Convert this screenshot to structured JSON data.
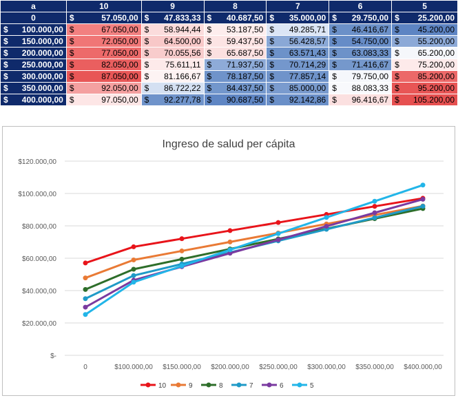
{
  "table": {
    "corner": "a",
    "header_row": {
      "label": "0",
      "currency": "$",
      "values": [
        "57.050,00",
        "47.833,33",
        "40.687,50",
        "35.000,00",
        "29.750,00",
        "25.200,00"
      ]
    },
    "columns": [
      "10",
      "9",
      "8",
      "7",
      "6",
      "5"
    ],
    "rows": [
      {
        "label_currency": "$",
        "label": "100.000,00",
        "values": [
          "67.050,00",
          "58.944,44",
          "53.187,50",
          "49.285,71",
          "46.416,67",
          "45.200,00"
        ],
        "colors": [
          "#f28080",
          "#fbdcdc",
          "#fdeded",
          "#dbe5f5",
          "#6b90c8",
          "#5d84c3"
        ]
      },
      {
        "label_currency": "$",
        "label": "150.000,00",
        "values": [
          "72.050,00",
          "64.500,00",
          "59.437,50",
          "56.428,57",
          "54.750,00",
          "55.200,00"
        ],
        "colors": [
          "#f07676",
          "#f8c8c8",
          "#fce4e4",
          "#8aa8d6",
          "#668cc7",
          "#8ca9d7"
        ]
      },
      {
        "label_currency": "$",
        "label": "200.000,00",
        "values": [
          "77.050,00",
          "70.055,56",
          "65.687,50",
          "63.571,43",
          "63.083,33",
          "65.200,00"
        ],
        "colors": [
          "#ed6a6a",
          "#f8cccc",
          "#fbe0e0",
          "#6d92c9",
          "#6d92c9",
          "#f5f7fb"
        ]
      },
      {
        "label_currency": "$",
        "label": "250.000,00",
        "values": [
          "82.050,00",
          "75.611,11",
          "71.937,50",
          "70.714,29",
          "71.416,67",
          "75.200,00"
        ],
        "colors": [
          "#ea5f5f",
          "#fdeaea",
          "#8eabd8",
          "#7497cc",
          "#7598cc",
          "#fdeaea"
        ]
      },
      {
        "label_currency": "$",
        "label": "300.000,00",
        "values": [
          "87.050,00",
          "81.166,67",
          "78.187,50",
          "77.857,14",
          "79.750,00",
          "85.200,00"
        ],
        "colors": [
          "#e85656",
          "#fdf3f3",
          "#6f93ca",
          "#6f93ca",
          "#f5f7fb",
          "#ec6868"
        ]
      },
      {
        "label_currency": "$",
        "label": "350.000,00",
        "values": [
          "92.050,00",
          "86.722,22",
          "84.437,50",
          "85.000,00",
          "88.083,33",
          "95.200,00"
        ],
        "colors": [
          "#f4a0a0",
          "#d4e0f2",
          "#7397cc",
          "#7a9bce",
          "#f8f9fc",
          "#e85656"
        ]
      },
      {
        "label_currency": "$",
        "label": "400.000,00",
        "values": [
          "97.050,00",
          "92.277,78",
          "90.687,50",
          "92.142,86",
          "96.416,67",
          "105.200,00"
        ],
        "colors": [
          "#fde6e6",
          "#6f93ca",
          "#5f86c4",
          "#6a8fc8",
          "#fbe0e0",
          "#e65050"
        ]
      }
    ]
  },
  "chart_data": {
    "type": "line",
    "title": "Ingreso de salud per cápita",
    "categories": [
      "0",
      "$100.000,00",
      "$150.000,00",
      "$200.000,00",
      "$250.000,00",
      "$300.000,00",
      "$350.000,00",
      "$400.000,00"
    ],
    "y_ticks": [
      "$-",
      "$20.000,00",
      "$40.000,00",
      "$60.000,00",
      "$80.000,00",
      "$100.000,00",
      "$120.000,00"
    ],
    "ylim": [
      0,
      120000
    ],
    "grid": true,
    "legend_position": "bottom",
    "series": [
      {
        "name": "10",
        "color": "#e8141a",
        "values": [
          57050,
          67050,
          72050,
          77050,
          82050,
          87050,
          92050,
          97050
        ]
      },
      {
        "name": "9",
        "color": "#e97a35",
        "values": [
          47833.33,
          58944.44,
          64500,
          70055.56,
          75611.11,
          81166.67,
          86722.22,
          92277.78
        ]
      },
      {
        "name": "8",
        "color": "#2e6e2a",
        "values": [
          40687.5,
          53187.5,
          59437.5,
          65687.5,
          71937.5,
          78187.5,
          84437.5,
          90687.5
        ]
      },
      {
        "name": "7",
        "color": "#1f9ac7",
        "values": [
          35000,
          49285.71,
          56428.57,
          63571.43,
          70714.29,
          77857.14,
          85000,
          92142.86
        ]
      },
      {
        "name": "6",
        "color": "#7a3aa0",
        "values": [
          29750,
          46416.67,
          54750,
          63083.33,
          71416.67,
          79750,
          88083.33,
          96416.67
        ]
      },
      {
        "name": "5",
        "color": "#22b5e8",
        "values": [
          25200,
          45200,
          55200,
          65200,
          75200,
          85200,
          95200,
          105200
        ]
      }
    ]
  }
}
